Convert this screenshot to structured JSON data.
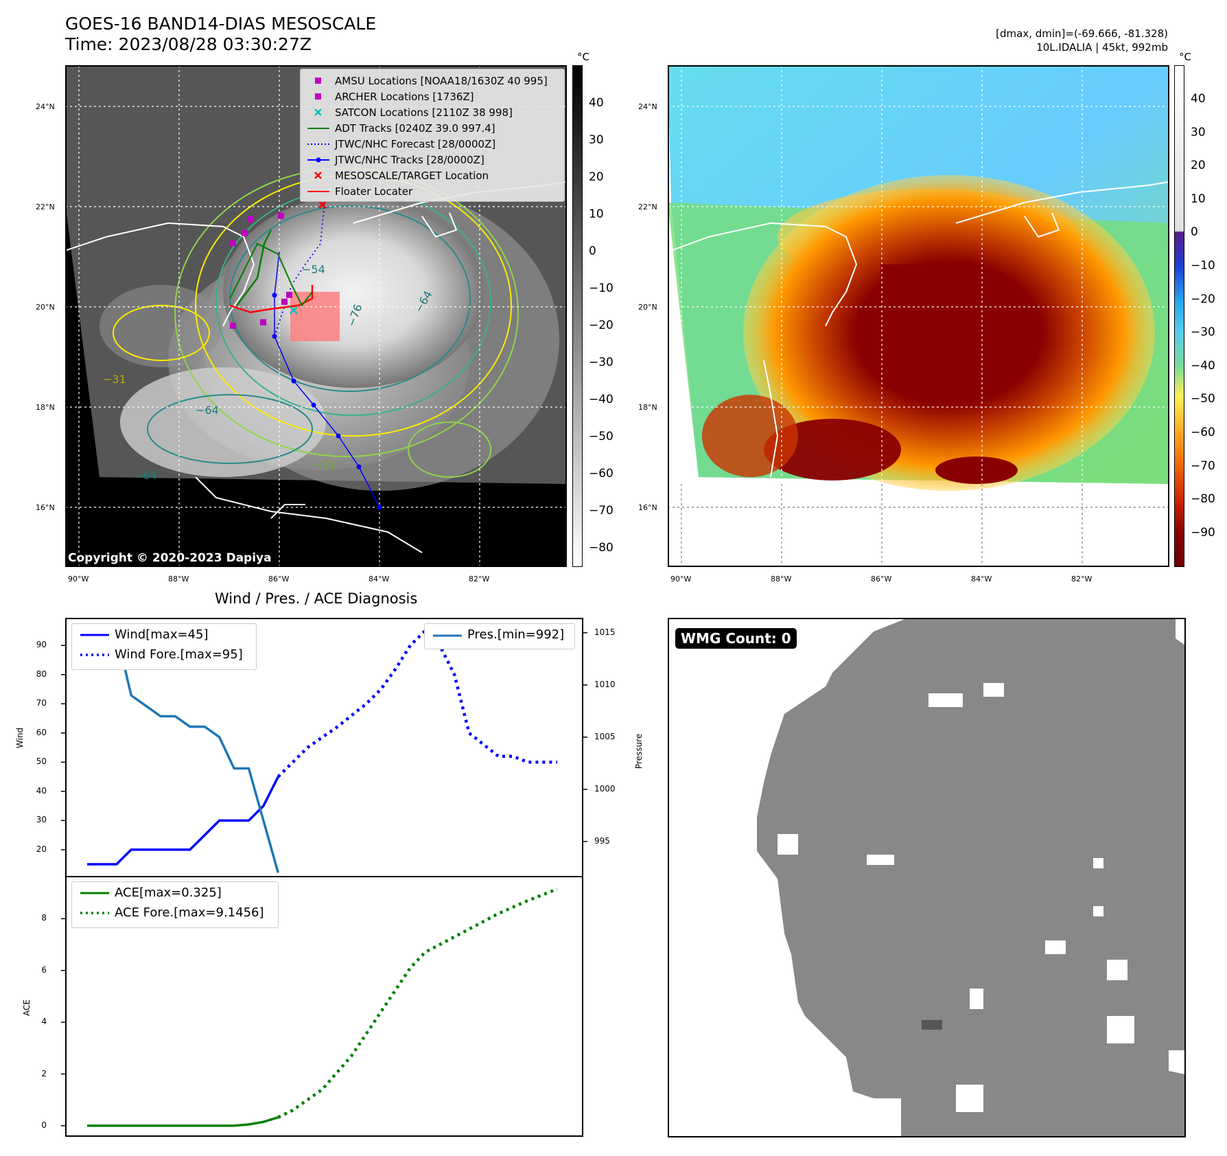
{
  "header": {
    "title_line1": "GOES-16 BAND14-DIAS MESOSCALE",
    "title_line2": "Time: 2023/08/28 03:30:27Z",
    "dmax_dmin": "[dmax, dmin]=(-69.666, -81.328)",
    "storm_info": "10L.IDALIA | 45kt, 992mb"
  },
  "map_axes": {
    "lat_labels": [
      "24°N",
      "22°N",
      "20°N",
      "18°N",
      "16°N"
    ],
    "lon_labels": [
      "90°W",
      "88°W",
      "86°W",
      "84°W",
      "82°W"
    ]
  },
  "gray_colorbar": {
    "unit": "°C",
    "ticks": [
      "40",
      "30",
      "20",
      "10",
      "0",
      "−10",
      "−20",
      "−30",
      "−40",
      "−50",
      "−60",
      "−70",
      "−80"
    ]
  },
  "color_colorbar": {
    "unit": "°C",
    "ticks": [
      "40",
      "30",
      "20",
      "10",
      "0",
      "−10",
      "−20",
      "−30",
      "−40",
      "−50",
      "−60",
      "−70",
      "−80",
      "−90"
    ]
  },
  "map_legend": {
    "items": [
      {
        "label": "AMSU Locations [NOAA18/1630Z 40 995]",
        "marker": "square",
        "color": "#bf00bf"
      },
      {
        "label": "ARCHER Locations [1736Z]",
        "marker": "square",
        "color": "#bf00bf"
      },
      {
        "label": "SATCON Locations [2110Z 38 998]",
        "marker": "x",
        "color": "#00bfbf"
      },
      {
        "label": "ADT Tracks [0240Z 39.0 997.4]",
        "marker": "line",
        "color": "#008000"
      },
      {
        "label": "JTWC/NHC Forecast [28/0000Z]",
        "marker": "dotted",
        "color": "#0000ff"
      },
      {
        "label": "JTWC/NHC Tracks [28/0000Z]",
        "marker": "line-dot",
        "color": "#0000ff"
      },
      {
        "label": "MESOSCALE/TARGET Location",
        "marker": "x",
        "color": "#ff0000"
      },
      {
        "label": "Floater Locater",
        "marker": "line",
        "color": "#ff0000"
      }
    ]
  },
  "contour_labels": [
    "−54",
    "−64",
    "−76",
    "−64",
    "−31",
    "−51",
    "−64"
  ],
  "copyright": "Copyright © 2020-2023 Dapiya",
  "wmg": {
    "label": "WMG Count: 0"
  },
  "chart_data": [
    {
      "type": "line",
      "title": "Wind / Pres. / ACE Diagnosis",
      "ylabel": "Wind",
      "y2label": "Pressure",
      "ylim": [
        11,
        99
      ],
      "y2lim": [
        991.7,
        1016.3
      ],
      "yticks": [
        "90",
        "80",
        "70",
        "60",
        "50",
        "40",
        "30",
        "20"
      ],
      "y2ticks": [
        "1015",
        "1010",
        "1005",
        "1000",
        "995"
      ],
      "series": [
        {
          "name": "Wind[max=45]",
          "color": "#0000ff",
          "style": "solid",
          "x": [
            0,
            2,
            3,
            4,
            5,
            6,
            7,
            8,
            9,
            10,
            11,
            12,
            13
          ],
          "values": [
            15,
            15,
            20,
            20,
            20,
            20,
            20,
            25,
            30,
            30,
            30,
            35,
            45
          ]
        },
        {
          "name": "Wind Fore.[max=95]",
          "color": "#0000ff",
          "style": "dotted",
          "x": [
            13,
            14,
            15,
            17,
            19,
            20,
            21,
            22,
            23,
            24,
            25,
            26,
            28,
            29,
            30,
            32
          ],
          "values": [
            45,
            50,
            55,
            62,
            70,
            75,
            82,
            90,
            95,
            90,
            80,
            60,
            52,
            52,
            50,
            50
          ]
        },
        {
          "name": "Pres.[min=992]",
          "color": "#1f77b4",
          "style": "solid",
          "axis": "right",
          "x": [
            0,
            2,
            3,
            4,
            5,
            6,
            7,
            8,
            9,
            10,
            11,
            12,
            13
          ],
          "values": [
            1015,
            1015,
            1009,
            1008,
            1007,
            1007,
            1006,
            1006,
            1005,
            1002,
            1002,
            997,
            992
          ]
        }
      ]
    },
    {
      "type": "line",
      "ylabel": "ACE",
      "ylim": [
        -0.4,
        9.6
      ],
      "yticks": [
        "8",
        "6",
        "4",
        "2",
        "0"
      ],
      "series": [
        {
          "name": "ACE[max=0.325]",
          "color": "#008000",
          "style": "solid",
          "x": [
            0,
            2,
            4,
            6,
            8,
            10,
            11,
            12,
            13
          ],
          "values": [
            0,
            0,
            0,
            0,
            0,
            0,
            0.05,
            0.15,
            0.325
          ]
        },
        {
          "name": "ACE Fore.[max=9.1456]",
          "color": "#008000",
          "style": "dotted",
          "x": [
            13,
            14,
            16,
            18,
            20,
            22,
            23,
            24,
            26,
            28,
            30,
            32
          ],
          "values": [
            0.325,
            0.6,
            1.4,
            2.7,
            4.4,
            6.1,
            6.7,
            7.0,
            7.6,
            8.2,
            8.7,
            9.1456
          ]
        }
      ]
    }
  ]
}
